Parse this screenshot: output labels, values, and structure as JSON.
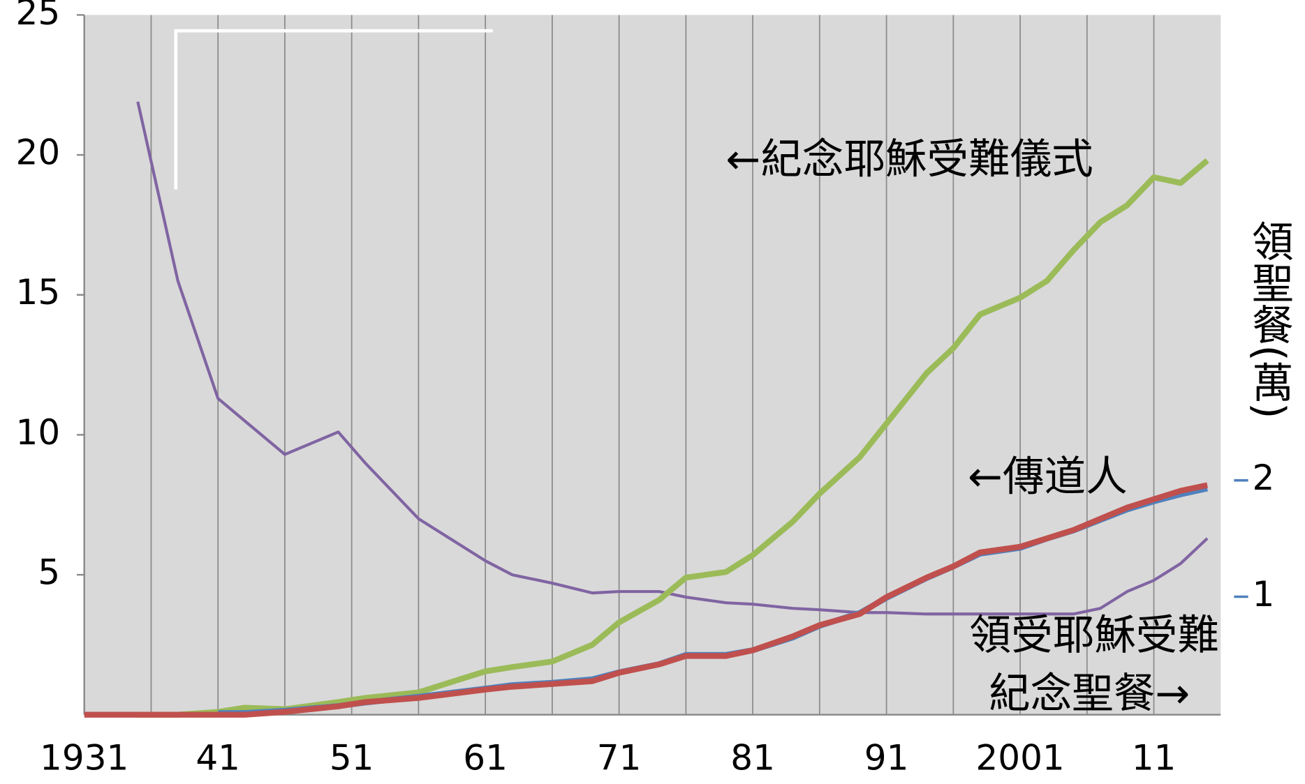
{
  "chart_data": {
    "type": "line",
    "x": [
      1931,
      1935,
      1938,
      1941,
      1943,
      1946,
      1950,
      1952,
      1956,
      1961,
      1963,
      1966,
      1969,
      1971,
      1974,
      1976,
      1979,
      1981,
      1984,
      1986,
      1989,
      1991,
      1994,
      1996,
      1998,
      2001,
      2003,
      2005,
      2007,
      2009,
      2011,
      2013,
      2015
    ],
    "xlim": [
      1931,
      2016
    ],
    "xticks": [
      1931,
      {
        "value": 1941,
        "label": "41"
      },
      {
        "value": 1951,
        "label": "51"
      },
      {
        "value": 1961,
        "label": "61"
      },
      {
        "value": 1971,
        "label": "71"
      },
      {
        "value": 1981,
        "label": "81"
      },
      {
        "value": 1991,
        "label": "91"
      },
      2001,
      {
        "value": 2011,
        "label": "11"
      }
    ],
    "ylim": [
      0,
      25
    ],
    "yticks": [
      5,
      10,
      15,
      20,
      25
    ],
    "y2lim": [
      0,
      6
    ],
    "y2ticks": [
      1,
      2
    ],
    "y2label": "領聖餐(萬)",
    "background": "#d9d9d9",
    "annotations": [
      "←紀念耶穌受難儀式",
      "←傳道人",
      "領受耶穌受難",
      "紀念聖餐→"
    ],
    "series": [
      {
        "color": "#8064a2",
        "values": [
          null,
          21.9,
          15.5,
          11.3,
          10.5,
          9.3,
          10.1,
          9.0,
          7.0,
          5.5,
          5.0,
          4.7,
          4.35,
          4.4,
          4.4,
          4.2,
          4.0,
          3.95,
          3.8,
          3.75,
          3.65,
          3.65,
          3.6,
          3.6,
          3.6,
          3.6,
          3.6,
          3.6,
          3.8,
          4.4,
          4.8,
          5.4,
          6.3
        ]
      },
      {
        "color": "#9bbb59",
        "values": [
          null,
          0,
          0,
          0.1,
          0.25,
          0.2,
          0.45,
          0.6,
          0.8,
          1.55,
          1.7,
          1.9,
          2.5,
          3.3,
          4.1,
          4.9,
          5.1,
          5.7,
          6.9,
          7.9,
          9.2,
          10.4,
          12.2,
          13.1,
          14.3,
          14.9,
          15.5,
          16.6,
          17.6,
          18.2,
          19.2,
          19.0,
          19.8
        ]
      },
      {
        "color": "#4f81bd",
        "axis": "y2",
        "values": [
          null,
          null,
          null,
          0,
          0,
          0.02,
          0.06,
          0.09,
          0.14,
          0.21,
          0.24,
          0.26,
          0.29,
          0.35,
          0.42,
          0.5,
          0.5,
          0.54,
          0.65,
          0.75,
          0.86,
          0.99,
          1.16,
          1.26,
          1.37,
          1.42,
          1.5,
          1.57,
          1.66,
          1.75,
          1.82,
          1.88,
          1.93
        ]
      },
      {
        "color": "#c0504d",
        "values": [
          0,
          0,
          0,
          0,
          0,
          0.1,
          0.3,
          0.45,
          0.6,
          0.9,
          1.0,
          1.1,
          1.2,
          1.5,
          1.8,
          2.1,
          2.1,
          2.3,
          2.8,
          3.2,
          3.6,
          4.2,
          4.9,
          5.3,
          5.8,
          6.0,
          6.3,
          6.6,
          7.0,
          7.4,
          7.7,
          8.0,
          8.2
        ]
      }
    ]
  }
}
